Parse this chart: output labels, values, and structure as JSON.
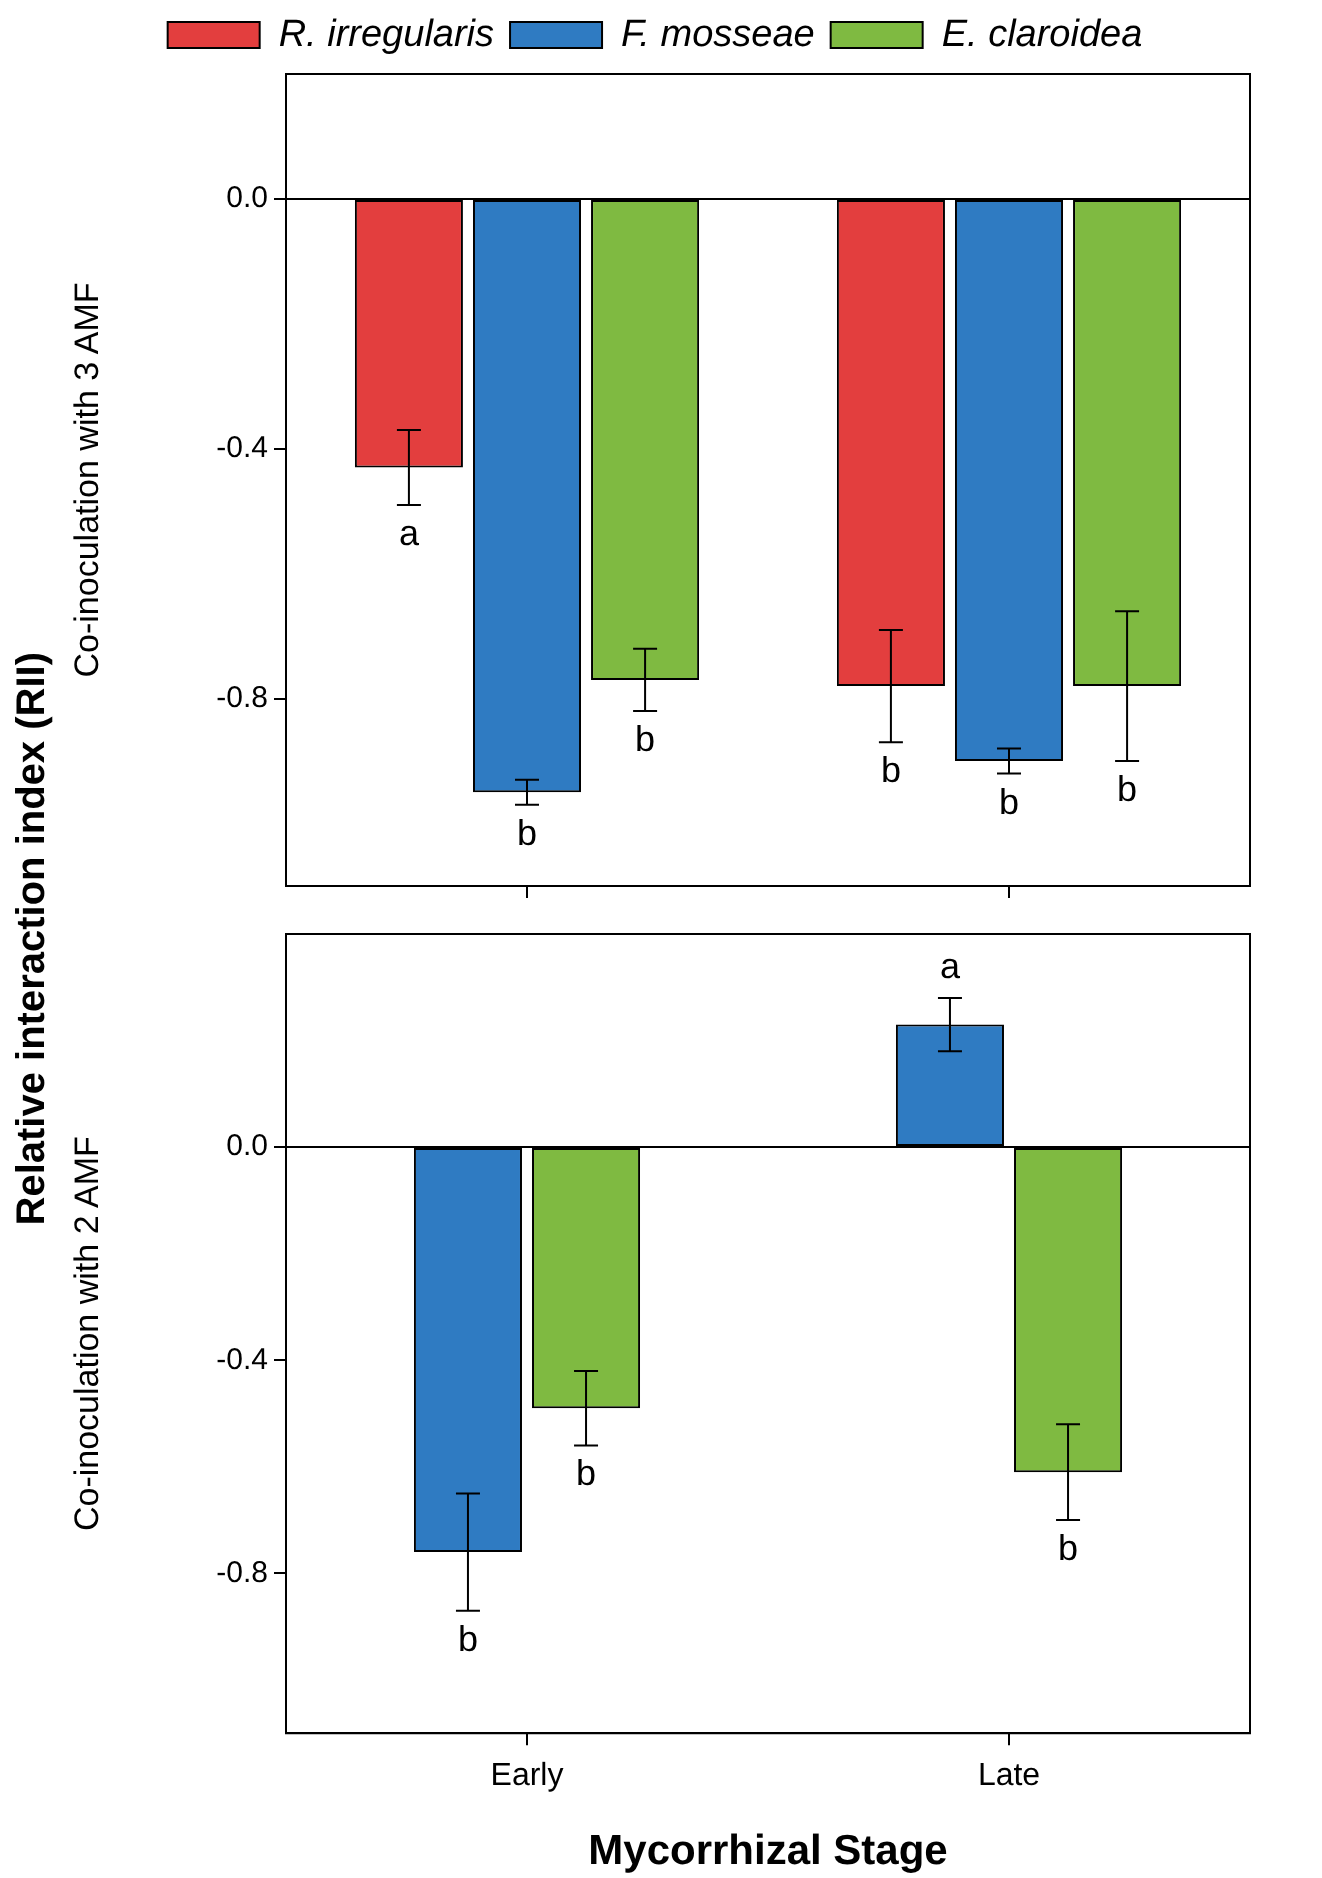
{
  "chart_data": [
    {
      "type": "bar",
      "ylabel": "Co-inoculation with 3 AMF",
      "annotations": [
        "Relative interaction index (RII)"
      ],
      "categories": [
        null,
        null
      ],
      "series": [
        {
          "name": "R. irregularis",
          "color": "#e33e3e",
          "values": [
            -0.43,
            -0.78
          ],
          "errors": [
            0.06,
            0.09
          ],
          "value_labels": [
            "a",
            "b"
          ]
        },
        {
          "name": "F. mosseae",
          "color": "#2f7bc2",
          "values": [
            -0.95,
            -0.9
          ],
          "errors": [
            0.02,
            0.02
          ],
          "value_labels": [
            "b",
            "b"
          ]
        },
        {
          "name": "E. claroidea",
          "color": "#7fba41",
          "values": [
            -0.77,
            -0.78
          ],
          "errors": [
            0.05,
            0.12
          ],
          "value_labels": [
            "b",
            "b"
          ]
        }
      ],
      "ylim": [
        -1.1,
        0.2
      ],
      "yticks": [
        {
          "value": 0,
          "label": "0.0"
        },
        {
          "value": -0.4,
          "label": "-0.4"
        },
        {
          "value": -0.8,
          "label": "-0.8"
        }
      ],
      "ref_lines": [
        {
          "axis": "y",
          "value": 0
        }
      ],
      "legend": "top",
      "tick_labels": "y"
    },
    {
      "type": "bar",
      "ylabel": "Co-inoculation with 2 AMF",
      "xlabel": "Mycorrhizal Stage",
      "categories": [
        "Early",
        "Late"
      ],
      "series": [
        {
          "color": "#2f7bc2",
          "values": [
            -0.76,
            0.23
          ],
          "errors": [
            0.11,
            0.05
          ],
          "value_labels": [
            "b",
            "a"
          ]
        },
        {
          "color": "#7fba41",
          "values": [
            -0.49,
            -0.61
          ],
          "errors": [
            0.07,
            0.09
          ],
          "value_labels": [
            "b",
            "b"
          ]
        }
      ],
      "ylim": [
        -1.1,
        0.4
      ],
      "yticks": [
        {
          "value": 0,
          "label": "0.0"
        },
        {
          "value": -0.4,
          "label": "-0.4"
        },
        {
          "value": -0.8,
          "label": "-0.8"
        }
      ],
      "ref_lines": [
        {
          "axis": "y",
          "value": 0
        }
      ]
    }
  ]
}
